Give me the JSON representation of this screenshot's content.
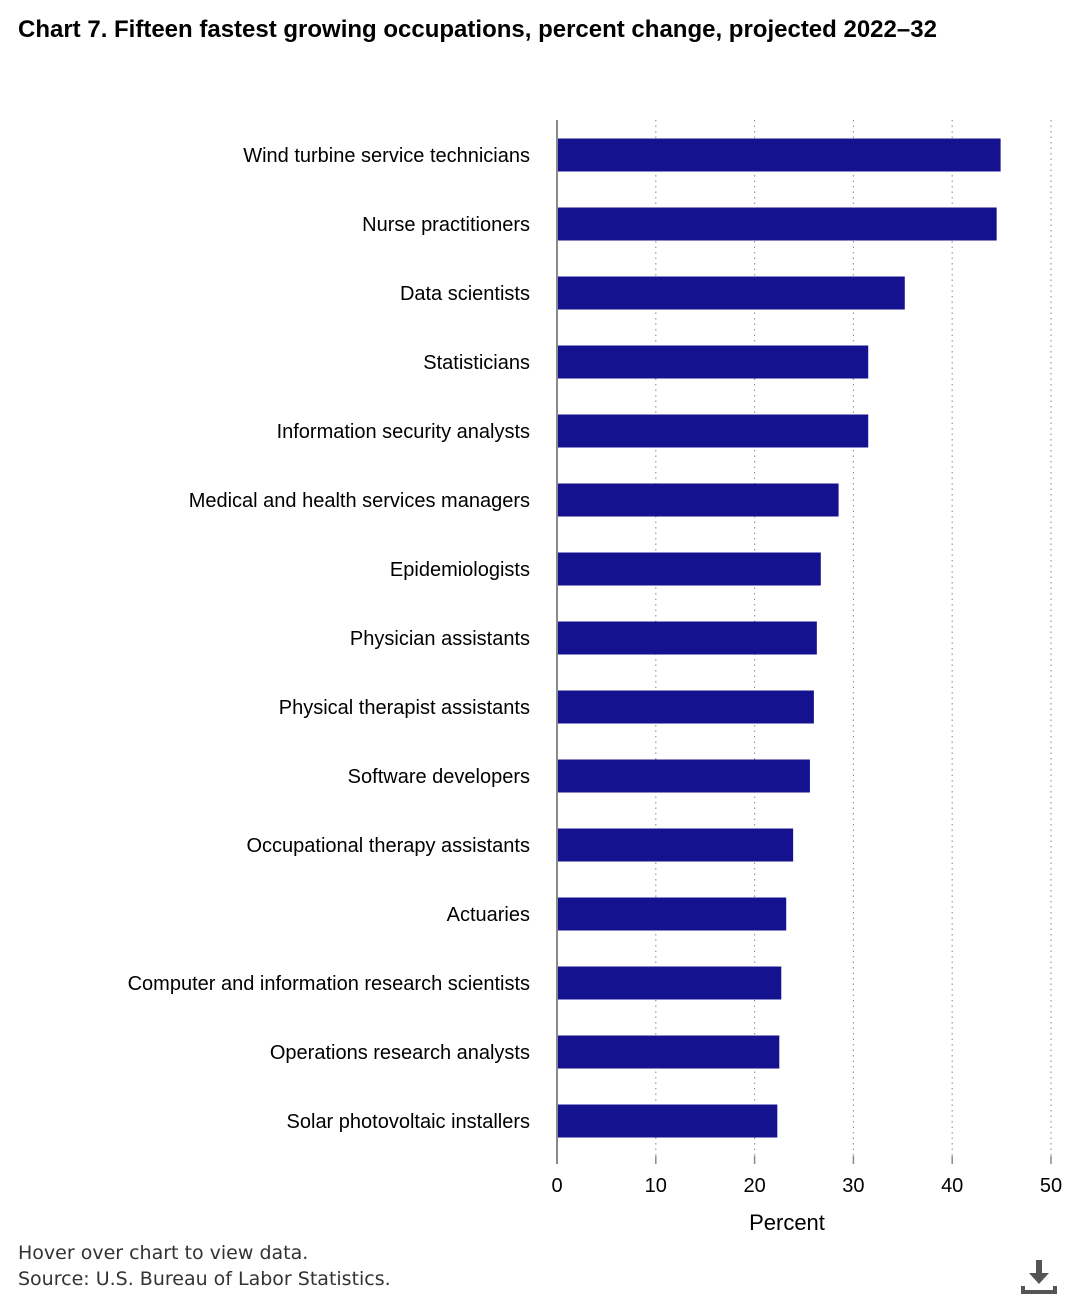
{
  "title": "Chart 7. Fifteen fastest growing occupations, percent change, projected 2022–32",
  "colors": {
    "bar": "#15128f",
    "axis": "#8a8a8a",
    "grid": "#9a9a9a",
    "icon": "#555555"
  },
  "chart_data": {
    "type": "bar",
    "orientation": "horizontal",
    "categories": [
      "Wind turbine service technicians",
      "Nurse practitioners",
      "Data scientists",
      "Statisticians",
      "Information security analysts",
      "Medical and health services managers",
      "Epidemiologists",
      "Physician assistants",
      "Physical therapist assistants",
      "Software developers",
      "Occupational therapy assistants",
      "Actuaries",
      "Computer and information research scientists",
      "Operations research analysts",
      "Solar photovoltaic installers"
    ],
    "values": [
      44.9,
      44.5,
      35.2,
      31.5,
      31.5,
      28.5,
      26.7,
      26.3,
      26.0,
      25.6,
      23.9,
      23.2,
      22.7,
      22.5,
      22.3
    ],
    "xlabel": "Percent",
    "xlim": [
      0,
      50
    ],
    "xticks": [
      0,
      10,
      20,
      30,
      40,
      50
    ],
    "grid": true
  },
  "footer": {
    "hover_note": "Hover over chart to view data.",
    "source": "Source: U.S. Bureau of Labor Statistics."
  },
  "download_icon": "download-icon"
}
